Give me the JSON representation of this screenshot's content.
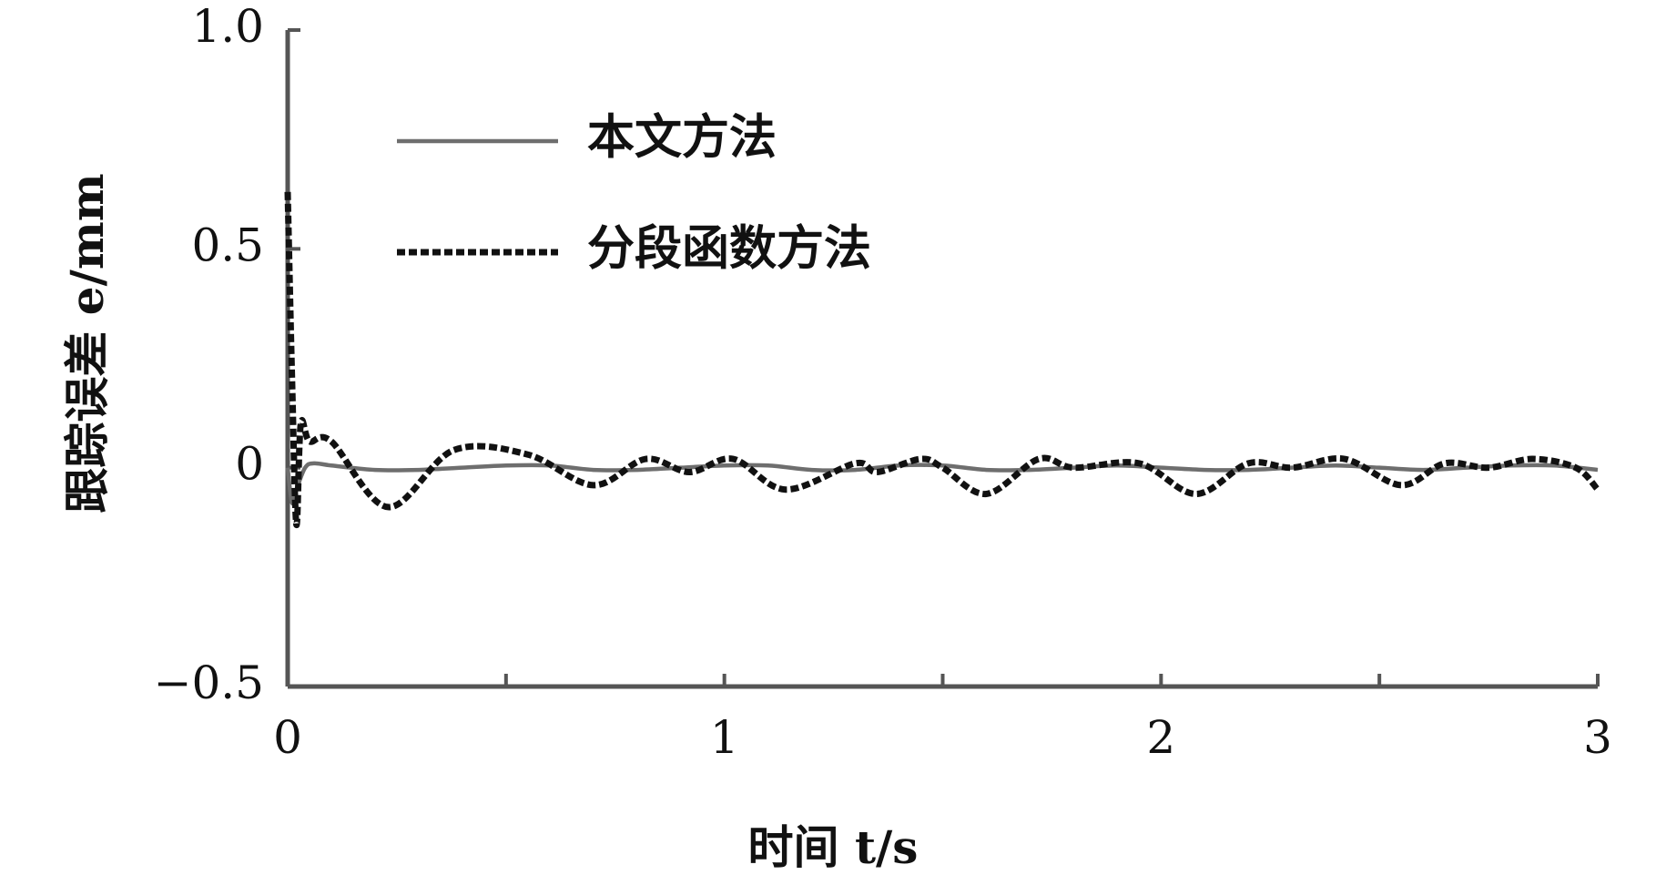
{
  "chart_data": {
    "type": "line",
    "x_label": "时间 t/s",
    "y_label": "跟踪误差 e/mm",
    "xlim": [
      0,
      3
    ],
    "xticks": [
      0,
      1,
      2,
      3
    ],
    "xminor_ticks": [
      0.5,
      1.5,
      2.5
    ],
    "ylim": [
      -0.5,
      1.0
    ],
    "yticks": [
      {
        "value": -0.5,
        "label": "−0.5"
      },
      0,
      0.5,
      {
        "value": 1.0,
        "label": "1.0"
      }
    ],
    "legend": "upper left",
    "series": [
      {
        "name": "本文方法",
        "color": "#6e6e6e",
        "dash": false,
        "x": [
          0,
          0.01,
          0.02,
          0.04,
          0.06,
          0.1,
          0.2,
          0.3,
          0.4,
          0.5,
          0.6,
          0.7,
          0.8,
          0.9,
          1.0,
          1.1,
          1.2,
          1.3,
          1.4,
          1.5,
          1.6,
          1.7,
          1.8,
          1.9,
          2.0,
          2.1,
          2.2,
          2.3,
          2.4,
          2.5,
          2.6,
          2.7,
          2.8,
          2.9,
          3.0
        ],
        "values": [
          0,
          -0.08,
          -0.05,
          0,
          0.01,
          0.005,
          -0.005,
          -0.005,
          0,
          0.005,
          0.005,
          -0.005,
          -0.005,
          0,
          0.005,
          0.005,
          -0.005,
          -0.005,
          0.005,
          0.005,
          -0.005,
          -0.005,
          0,
          0.005,
          0,
          -0.005,
          -0.005,
          0,
          0.005,
          0,
          -0.005,
          0,
          0.005,
          0.005,
          -0.005
        ]
      },
      {
        "name": "分段函数方法",
        "color": "#111111",
        "dash": true,
        "x": [
          0,
          0.01,
          0.02,
          0.03,
          0.05,
          0.1,
          0.23,
          0.38,
          0.55,
          0.7,
          0.82,
          0.92,
          1.02,
          1.14,
          1.3,
          1.35,
          1.45,
          1.5,
          1.6,
          1.72,
          1.8,
          1.95,
          2.08,
          2.2,
          2.3,
          2.42,
          2.55,
          2.65,
          2.75,
          2.85,
          2.95,
          3.0
        ],
        "values": [
          0.63,
          0.2,
          -0.13,
          0.1,
          0.06,
          0.06,
          -0.09,
          0.04,
          0.03,
          -0.04,
          0.02,
          -0.01,
          0.02,
          -0.05,
          0.01,
          -0.01,
          0.02,
          0,
          -0.06,
          0.02,
          0,
          0.01,
          -0.06,
          0.01,
          0,
          0.02,
          -0.04,
          0.01,
          0,
          0.02,
          0,
          -0.05
        ]
      }
    ]
  }
}
